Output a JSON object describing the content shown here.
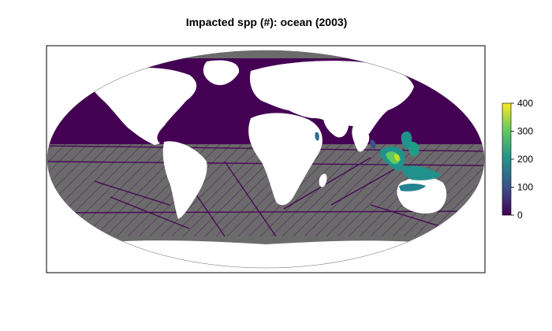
{
  "title": "Impacted spp (#): ocean (2003)",
  "legend": {
    "ticks": [
      0,
      100,
      200,
      300,
      400
    ],
    "range": [
      0,
      400
    ],
    "colors": [
      "#440154",
      "#3b528b",
      "#21918c",
      "#5ec962",
      "#fde725"
    ]
  },
  "colors": {
    "no_data": "#6b6b6b",
    "low_impact": "#440154",
    "land": "#ffffff",
    "frame": "#000000"
  }
}
